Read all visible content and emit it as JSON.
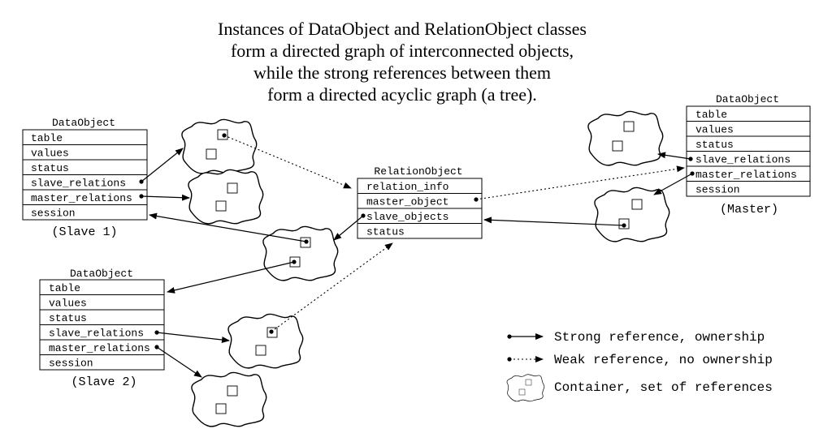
{
  "title": {
    "lines": [
      "Instances of DataObject and RelationObject classes",
      "form a directed graph of interconnected objects,",
      "while the strong references between them",
      "form a directed acyclic graph (a tree)."
    ]
  },
  "slave1": {
    "header": "DataObject",
    "fields": [
      "table",
      "values",
      "status",
      "slave_relations",
      "master_relations",
      "session"
    ],
    "caption": "(Slave 1)"
  },
  "slave2": {
    "header": "DataObject",
    "fields": [
      "table",
      "values",
      "status",
      "slave_relations",
      "master_relations",
      "session"
    ],
    "caption": "(Slave 2)"
  },
  "master": {
    "header": "DataObject",
    "fields": [
      "table",
      "values",
      "status",
      "slave_relations",
      "master_relations",
      "session"
    ],
    "caption": "(Master)"
  },
  "relation": {
    "header": "RelationObject",
    "fields": [
      "relation_info",
      "master_object",
      "slave_objects",
      "status"
    ]
  },
  "legend": {
    "strong": "Strong reference, ownership",
    "weak": "Weak reference, no ownership",
    "container": "Container, set of references"
  }
}
